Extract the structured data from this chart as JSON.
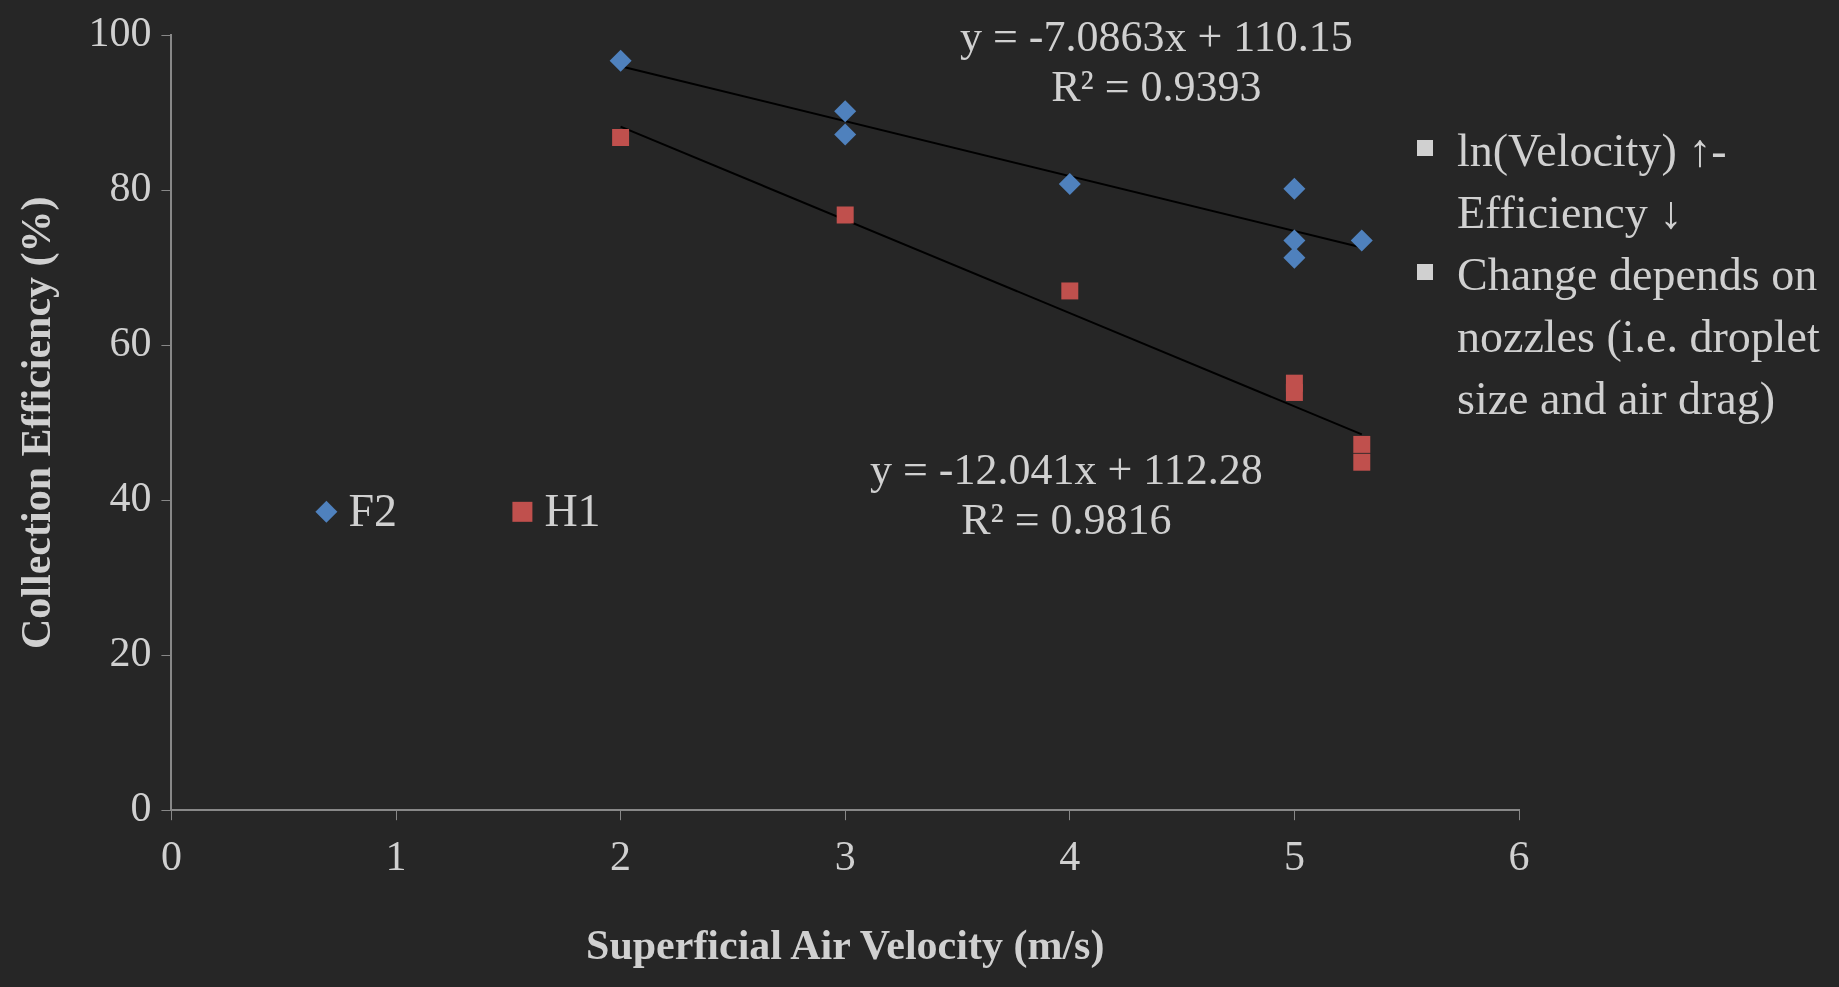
{
  "chart_data": {
    "type": "scatter",
    "xlabel": "Superficial Air Velocity (m/s)",
    "ylabel": "Collection Efficiency (%)",
    "xlim": [
      0,
      6
    ],
    "xticks": [
      0,
      1,
      2,
      3,
      4,
      5,
      6
    ],
    "ylim": [
      0,
      100
    ],
    "yticks": [
      0,
      20,
      40,
      60,
      80,
      100
    ],
    "grid": false,
    "legend": "left",
    "series": [
      {
        "name": "F2",
        "color": "#4f81bd",
        "marker": "diamond",
        "x": [
          2,
          3,
          3,
          4,
          5,
          5,
          5,
          5.3
        ],
        "values": [
          96.7,
          90.2,
          87.2,
          80.8,
          80.2,
          73.5,
          71.3,
          73.5
        ]
      },
      {
        "name": "H1",
        "color": "#c0504d",
        "marker": "square",
        "x": [
          2,
          3,
          4,
          5,
          5,
          5.3,
          5.3
        ],
        "values": [
          86.8,
          76.8,
          67.0,
          55.1,
          53.9,
          47.2,
          44.9
        ]
      },
      {
        "type": "line",
        "color": "#000000",
        "marker": "none",
        "x": [
          2,
          5.3
        ],
        "values": [
          96,
          72.6
        ]
      },
      {
        "type": "line",
        "color": "#000000",
        "marker": "none",
        "x": [
          2,
          5.3
        ],
        "values": [
          88.2,
          48.5
        ]
      }
    ],
    "annotations": [
      "y = -7.0863x + 110.15\nR² = 0.9393",
      "y = -12.041x + 112.28\nR² = 0.9816",
      "ln(Velocity) ↑- Efficiency ↓",
      "Change depends on nozzles (i.e. droplet size and air drag)"
    ]
  }
}
